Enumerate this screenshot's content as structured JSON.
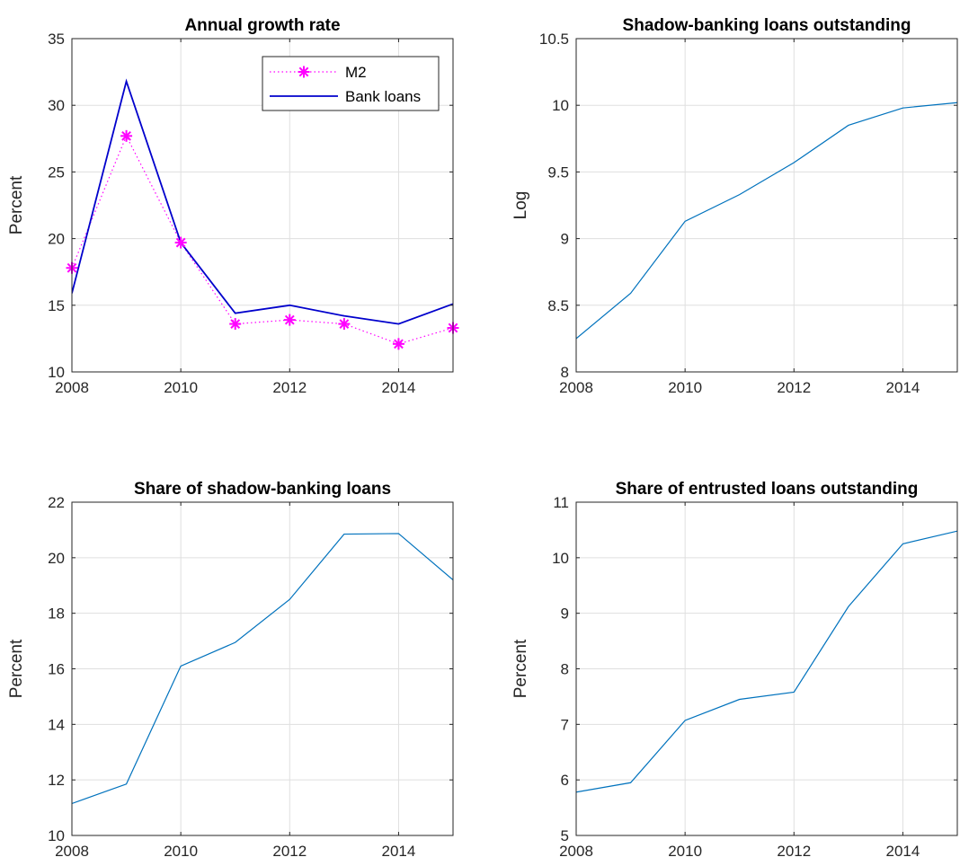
{
  "chart_data": [
    {
      "type": "line",
      "title": "Annual growth rate",
      "xlabel": "",
      "ylabel": "Percent",
      "xlim": [
        2008,
        2015
      ],
      "ylim": [
        10,
        35
      ],
      "xticks": [
        2008,
        2010,
        2012,
        2014
      ],
      "yticks": [
        10,
        15,
        20,
        25,
        30,
        35
      ],
      "grid": true,
      "legend": "top-right",
      "x": [
        2008,
        2009,
        2010,
        2011,
        2012,
        2013,
        2014,
        2015
      ],
      "series": [
        {
          "name": "M2",
          "values": [
            17.8,
            27.7,
            19.7,
            13.6,
            13.9,
            13.6,
            12.1,
            13.3
          ],
          "color": "#ff00ff",
          "style": "dotted",
          "marker": "asterisk"
        },
        {
          "name": "Bank loans",
          "values": [
            15.9,
            31.8,
            19.7,
            14.4,
            15.0,
            14.2,
            13.6,
            15.1
          ],
          "color": "#0000cc",
          "style": "solid"
        }
      ]
    },
    {
      "type": "line",
      "title": "Shadow-banking loans outstanding",
      "xlabel": "",
      "ylabel": "Log",
      "xlim": [
        2008,
        2015
      ],
      "ylim": [
        8,
        10.5
      ],
      "xticks": [
        2008,
        2010,
        2012,
        2014
      ],
      "yticks": [
        8,
        8.5,
        9,
        9.5,
        10,
        10.5
      ],
      "grid": true,
      "x": [
        2008,
        2009,
        2010,
        2011,
        2012,
        2013,
        2014,
        2015
      ],
      "series": [
        {
          "values": [
            8.25,
            8.59,
            9.13,
            9.33,
            9.57,
            9.85,
            9.98,
            10.02
          ],
          "color": "#0072bd",
          "style": "solid"
        }
      ]
    },
    {
      "type": "line",
      "title": "Share of shadow-banking loans",
      "xlabel": "",
      "ylabel": "Percent",
      "xlim": [
        2008,
        2015
      ],
      "ylim": [
        10,
        22
      ],
      "xticks": [
        2008,
        2010,
        2012,
        2014
      ],
      "yticks": [
        10,
        12,
        14,
        16,
        18,
        20,
        22
      ],
      "grid": true,
      "x": [
        2008,
        2009,
        2010,
        2011,
        2012,
        2013,
        2014,
        2015
      ],
      "series": [
        {
          "values": [
            11.15,
            11.85,
            16.1,
            16.95,
            18.5,
            20.85,
            20.87,
            19.2
          ],
          "color": "#0072bd",
          "style": "solid"
        }
      ]
    },
    {
      "type": "line",
      "title": "Share of entrusted loans outstanding",
      "xlabel": "",
      "ylabel": "Percent",
      "xlim": [
        2008,
        2015
      ],
      "ylim": [
        5,
        11
      ],
      "xticks": [
        2008,
        2010,
        2012,
        2014
      ],
      "yticks": [
        5,
        6,
        7,
        8,
        9,
        10,
        11
      ],
      "grid": true,
      "x": [
        2008,
        2009,
        2010,
        2011,
        2012,
        2013,
        2014,
        2015
      ],
      "series": [
        {
          "values": [
            5.78,
            5.95,
            7.07,
            7.45,
            7.58,
            9.12,
            10.25,
            10.48
          ],
          "color": "#0072bd",
          "style": "solid"
        }
      ]
    }
  ]
}
